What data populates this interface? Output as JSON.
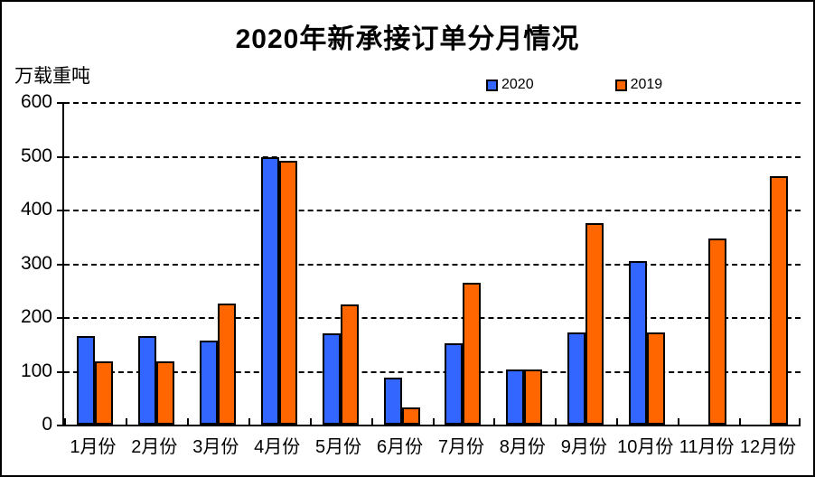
{
  "chart_data": {
    "type": "bar",
    "title": "2020年新承接订单分月情况",
    "ylabel": "万载重吨",
    "xlabel": "",
    "categories": [
      "1月份",
      "2月份",
      "3月份",
      "4月份",
      "5月份",
      "6月份",
      "7月份",
      "8月份",
      "9月份",
      "10月份",
      "11月份",
      "12月份"
    ],
    "series": [
      {
        "name": "2020",
        "color": "#3366FF",
        "values": [
          165,
          165,
          157,
          498,
          170,
          88,
          152,
          103,
          172,
          305,
          null,
          null
        ]
      },
      {
        "name": "2019",
        "color": "#FF6600",
        "values": [
          117,
          117,
          225,
          490,
          223,
          32,
          264,
          102,
          374,
          171,
          346,
          462
        ]
      }
    ],
    "ylim": [
      0,
      600
    ],
    "y_ticks": [
      0,
      100,
      200,
      300,
      400,
      500,
      600
    ],
    "grid": "horizontal-dashed",
    "legend_position": "top"
  }
}
